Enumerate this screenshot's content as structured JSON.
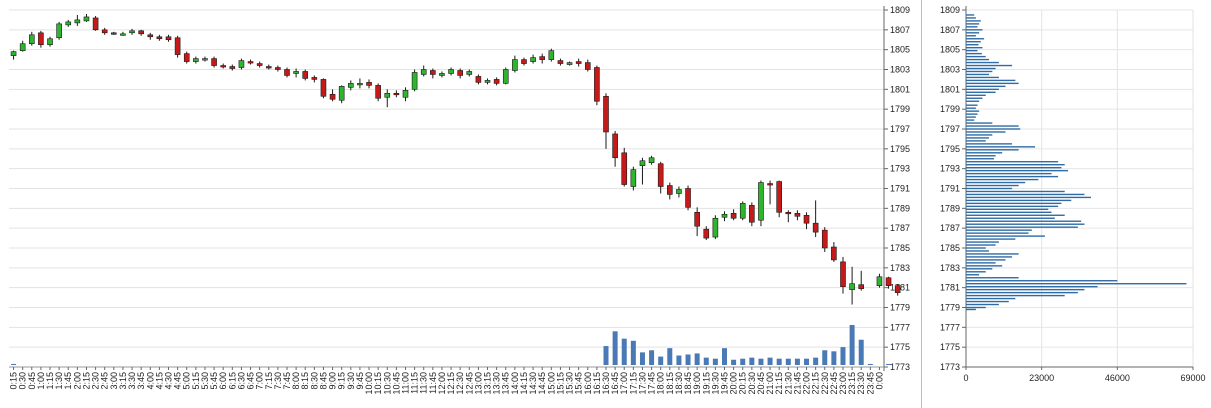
{
  "chart_data": [
    {
      "type": "candlestick",
      "price_axis": {
        "min": 1773,
        "max": 1809,
        "ticks": [
          1773,
          1775,
          1777,
          1779,
          1781,
          1783,
          1785,
          1787,
          1789,
          1791,
          1793,
          1795,
          1797,
          1799,
          1801,
          1803,
          1805,
          1807,
          1809
        ]
      },
      "x_tick_labels": [
        "0:15",
        "0:30",
        "0:45",
        "1:00",
        "1:15",
        "1:30",
        "1:45",
        "2:00",
        "2:15",
        "2:30",
        "2:45",
        "3:00",
        "3:15",
        "3:30",
        "3:45",
        "4:00",
        "4:15",
        "4:30",
        "4:45",
        "5:00",
        "5:15",
        "5:30",
        "5:45",
        "6:00",
        "6:15",
        "6:30",
        "6:45",
        "7:00",
        "7:15",
        "7:30",
        "7:45",
        "8:00",
        "8:15",
        "8:30",
        "8:45",
        "9:00",
        "9:15",
        "9:30",
        "9:45",
        "10:00",
        "10:15",
        "10:30",
        "10:45",
        "11:00",
        "11:15",
        "11:30",
        "11:45",
        "12:00",
        "12:15",
        "12:30",
        "12:45",
        "13:00",
        "13:15",
        "13:30",
        "13:45",
        "14:00",
        "14:15",
        "14:30",
        "14:45",
        "15:00",
        "15:15",
        "15:30",
        "15:45",
        "16:00",
        "16:15",
        "16:30",
        "16:45",
        "17:00",
        "17:15",
        "17:30",
        "17:45",
        "18:00",
        "18:15",
        "18:30",
        "18:45",
        "19:00",
        "19:15",
        "19:30",
        "19:45",
        "20:00",
        "20:15",
        "20:30",
        "20:45",
        "21:00",
        "21:15",
        "21:30",
        "21:45",
        "22:00",
        "22:15",
        "22:30",
        "22:45",
        "23:00",
        "23:15",
        "23:30",
        "23:45",
        "0:00"
      ],
      "candles": [
        [
          1804.4,
          1804.8,
          1804.0,
          1804.9
        ],
        [
          1804.9,
          1805.6,
          1804.8,
          1805.9
        ],
        [
          1805.6,
          1806.5,
          1805.4,
          1806.8
        ],
        [
          1806.7,
          1805.5,
          1805.2,
          1806.9
        ],
        [
          1805.5,
          1806.1,
          1805.3,
          1806.3
        ],
        [
          1806.2,
          1807.6,
          1806.0,
          1807.8
        ],
        [
          1807.5,
          1807.8,
          1807.3,
          1808.0
        ],
        [
          1807.7,
          1808.0,
          1807.4,
          1808.5
        ],
        [
          1807.9,
          1808.3,
          1807.8,
          1808.6
        ],
        [
          1808.2,
          1807.0,
          1806.9,
          1808.4
        ],
        [
          1807.0,
          1806.7,
          1806.5,
          1807.2
        ],
        [
          1806.7,
          1806.6,
          1806.5,
          1806.8
        ],
        [
          1806.6,
          1806.6,
          1806.4,
          1806.8
        ],
        [
          1806.7,
          1806.9,
          1806.5,
          1807.1
        ],
        [
          1806.9,
          1806.6,
          1806.4,
          1807.0
        ],
        [
          1806.5,
          1806.3,
          1806.0,
          1806.7
        ],
        [
          1806.3,
          1806.1,
          1805.9,
          1806.5
        ],
        [
          1806.3,
          1806.0,
          1805.8,
          1806.5
        ],
        [
          1806.2,
          1804.5,
          1804.2,
          1806.4
        ],
        [
          1804.6,
          1803.8,
          1803.6,
          1804.8
        ],
        [
          1803.8,
          1804.1,
          1803.6,
          1804.3
        ],
        [
          1804.0,
          1804.1,
          1803.8,
          1804.3
        ],
        [
          1804.1,
          1803.4,
          1803.2,
          1804.3
        ],
        [
          1803.4,
          1803.3,
          1803.1,
          1803.6
        ],
        [
          1803.3,
          1803.1,
          1802.9,
          1803.5
        ],
        [
          1803.2,
          1803.9,
          1803.0,
          1804.1
        ],
        [
          1803.8,
          1803.7,
          1803.5,
          1804.0
        ],
        [
          1803.6,
          1803.4,
          1803.2,
          1803.8
        ],
        [
          1803.3,
          1803.2,
          1803.0,
          1803.5
        ],
        [
          1803.2,
          1803.0,
          1802.8,
          1803.4
        ],
        [
          1803.0,
          1802.4,
          1802.2,
          1803.2
        ],
        [
          1802.6,
          1802.8,
          1802.2,
          1803.1
        ],
        [
          1802.8,
          1802.1,
          1801.9,
          1803.0
        ],
        [
          1802.2,
          1802.0,
          1801.7,
          1802.4
        ],
        [
          1802.0,
          1800.3,
          1800.1,
          1802.1
        ],
        [
          1800.5,
          1800.0,
          1799.8,
          1801.0
        ],
        [
          1799.9,
          1801.3,
          1799.6,
          1801.4
        ],
        [
          1801.2,
          1801.6,
          1800.9,
          1801.9
        ],
        [
          1801.5,
          1801.6,
          1801.1,
          1802.1
        ],
        [
          1801.7,
          1801.4,
          1801.1,
          1802.0
        ],
        [
          1801.4,
          1800.1,
          1799.8,
          1801.6
        ],
        [
          1800.2,
          1800.6,
          1799.2,
          1801.0
        ],
        [
          1800.6,
          1800.5,
          1800.2,
          1800.9
        ],
        [
          1800.2,
          1800.9,
          1799.8,
          1801.2
        ],
        [
          1801.0,
          1802.7,
          1800.8,
          1803.0
        ],
        [
          1802.5,
          1803.0,
          1802.3,
          1803.4
        ],
        [
          1802.9,
          1802.5,
          1802.1,
          1803.1
        ],
        [
          1802.4,
          1802.6,
          1802.2,
          1802.8
        ],
        [
          1802.6,
          1803.0,
          1802.4,
          1803.2
        ],
        [
          1802.9,
          1802.4,
          1802.1,
          1803.1
        ],
        [
          1802.5,
          1802.8,
          1802.3,
          1803.0
        ],
        [
          1802.3,
          1801.7,
          1801.5,
          1802.5
        ],
        [
          1801.7,
          1801.9,
          1801.5,
          1802.1
        ],
        [
          1802.0,
          1801.6,
          1801.4,
          1802.2
        ],
        [
          1801.6,
          1803.0,
          1801.5,
          1803.2
        ],
        [
          1802.9,
          1804.0,
          1802.7,
          1804.4
        ],
        [
          1804.0,
          1803.6,
          1803.4,
          1804.2
        ],
        [
          1803.8,
          1804.2,
          1803.6,
          1804.5
        ],
        [
          1804.3,
          1804.0,
          1803.6,
          1804.6
        ],
        [
          1804.0,
          1804.9,
          1803.8,
          1805.1
        ],
        [
          1803.9,
          1803.6,
          1803.4,
          1804.1
        ],
        [
          1803.5,
          1803.7,
          1803.4,
          1803.8
        ],
        [
          1803.8,
          1803.6,
          1803.3,
          1804.1
        ],
        [
          1803.7,
          1803.0,
          1802.8,
          1804.0
        ],
        [
          1803.2,
          1799.8,
          1799.4,
          1803.4
        ],
        [
          1800.3,
          1796.7,
          1795.0,
          1800.6
        ],
        [
          1796.5,
          1794.1,
          1793.2,
          1796.8
        ],
        [
          1794.6,
          1791.4,
          1791.2,
          1795.1
        ],
        [
          1791.2,
          1792.9,
          1790.8,
          1793.2
        ],
        [
          1793.3,
          1793.8,
          1791.4,
          1794.1
        ],
        [
          1793.6,
          1794.1,
          1793.4,
          1794.3
        ],
        [
          1793.5,
          1791.2,
          1790.5,
          1793.7
        ],
        [
          1791.3,
          1790.4,
          1789.9,
          1791.6
        ],
        [
          1790.5,
          1790.9,
          1790.1,
          1791.2
        ],
        [
          1791.0,
          1789.1,
          1788.8,
          1791.3
        ],
        [
          1788.6,
          1787.2,
          1786.2,
          1789.1
        ],
        [
          1786.9,
          1786.0,
          1785.8,
          1787.2
        ],
        [
          1786.1,
          1788.0,
          1785.9,
          1788.3
        ],
        [
          1788.1,
          1788.4,
          1787.7,
          1788.7
        ],
        [
          1788.5,
          1788.0,
          1787.8,
          1788.9
        ],
        [
          1788.0,
          1789.5,
          1787.8,
          1789.7
        ],
        [
          1789.3,
          1787.6,
          1787.2,
          1789.6
        ],
        [
          1787.8,
          1791.6,
          1787.2,
          1791.8
        ],
        [
          1791.5,
          1791.4,
          1789.4,
          1791.8
        ],
        [
          1791.7,
          1788.6,
          1788.1,
          1791.8
        ],
        [
          1788.6,
          1788.5,
          1787.6,
          1788.8
        ],
        [
          1788.5,
          1788.2,
          1787.8,
          1788.8
        ],
        [
          1788.3,
          1787.5,
          1786.9,
          1788.6
        ],
        [
          1787.5,
          1786.6,
          1786.1,
          1789.8
        ],
        [
          1786.8,
          1785.0,
          1784.6,
          1787.1
        ],
        [
          1785.1,
          1783.8,
          1783.6,
          1785.6
        ],
        [
          1783.6,
          1781.1,
          1780.4,
          1784.1
        ],
        [
          1780.8,
          1781.4,
          1779.3,
          1783.1
        ],
        [
          1781.3,
          1780.9,
          1780.7,
          1782.7
        ],
        null,
        [
          1781.2,
          1782.1,
          1781.0,
          1782.4
        ],
        [
          1782.0,
          1781.2,
          1780.9,
          1782.1
        ],
        [
          1781.2,
          1780.5,
          1780.2,
          1781.3
        ]
      ],
      "volume_bars": [
        1,
        0,
        0,
        0,
        0,
        0,
        0,
        0,
        0,
        0,
        0,
        0,
        0,
        0,
        0,
        0,
        0,
        0,
        0,
        0,
        0,
        0,
        0,
        0,
        0,
        0,
        0,
        0,
        0,
        0,
        0,
        0,
        0,
        0,
        0,
        0,
        0,
        0,
        0,
        0,
        0,
        0,
        0,
        0,
        0,
        0,
        0,
        0,
        0,
        0,
        0,
        0,
        0,
        0,
        0,
        0,
        0,
        0,
        0,
        0,
        0,
        0,
        0,
        0,
        0,
        18,
        32,
        25,
        23,
        12,
        14,
        8,
        16,
        9,
        10,
        11,
        7,
        6,
        16,
        5,
        6,
        7,
        6,
        7,
        6,
        6,
        6,
        6,
        7,
        14,
        13,
        17,
        38,
        24,
        1,
        0,
        1,
        0
      ],
      "colors": {
        "up": "#2db52d",
        "down": "#c51a1a",
        "outline": "#1a1a1a",
        "volume": "#4a7ab5",
        "grid": "#e3e3e3"
      }
    },
    {
      "type": "horizontal-bar",
      "title": "",
      "x_ticks": [
        0,
        23000,
        46000,
        69000
      ],
      "x_tick_labels": [
        "0",
        "23000",
        "46000",
        "69000"
      ],
      "xlim": [
        0,
        69000
      ],
      "y_axis": {
        "min": 1773,
        "max": 1809,
        "ticks": [
          1773,
          1775,
          1777,
          1779,
          1781,
          1783,
          1785,
          1787,
          1789,
          1791,
          1793,
          1795,
          1797,
          1799,
          1801,
          1803,
          1805,
          1807,
          1809
        ]
      },
      "profile": [
        [
          1808.5,
          2500
        ],
        [
          1808.2,
          3000
        ],
        [
          1807.9,
          4500
        ],
        [
          1807.6,
          4000
        ],
        [
          1807.3,
          3500
        ],
        [
          1807.0,
          5000
        ],
        [
          1806.7,
          4000
        ],
        [
          1806.4,
          3000
        ],
        [
          1806.1,
          5500
        ],
        [
          1805.8,
          4500
        ],
        [
          1805.5,
          3800
        ],
        [
          1805.2,
          5000
        ],
        [
          1804.9,
          3500
        ],
        [
          1804.6,
          4800
        ],
        [
          1804.3,
          6000
        ],
        [
          1804.0,
          7000
        ],
        [
          1803.7,
          10000
        ],
        [
          1803.4,
          14000
        ],
        [
          1803.1,
          9000
        ],
        [
          1802.8,
          8000
        ],
        [
          1802.5,
          7000
        ],
        [
          1802.2,
          10000
        ],
        [
          1801.9,
          15000
        ],
        [
          1801.6,
          16000
        ],
        [
          1801.3,
          12000
        ],
        [
          1801.0,
          10000
        ],
        [
          1800.7,
          9000
        ],
        [
          1800.4,
          6000
        ],
        [
          1800.1,
          5000
        ],
        [
          1799.8,
          4000
        ],
        [
          1799.4,
          3500
        ],
        [
          1799.1,
          3000
        ],
        [
          1798.8,
          4000
        ],
        [
          1798.5,
          3500
        ],
        [
          1798.2,
          3000
        ],
        [
          1797.9,
          2500
        ],
        [
          1797.6,
          8000
        ],
        [
          1797.3,
          16000
        ],
        [
          1797.0,
          16500
        ],
        [
          1796.7,
          12000
        ],
        [
          1796.4,
          8000
        ],
        [
          1796.1,
          7000
        ],
        [
          1795.8,
          6000
        ],
        [
          1795.5,
          14000
        ],
        [
          1795.2,
          21000
        ],
        [
          1794.9,
          16000
        ],
        [
          1794.6,
          11000
        ],
        [
          1794.3,
          9000
        ],
        [
          1794.0,
          8500
        ],
        [
          1793.7,
          28000
        ],
        [
          1793.4,
          30000
        ],
        [
          1793.1,
          29000
        ],
        [
          1792.8,
          31000
        ],
        [
          1792.5,
          26000
        ],
        [
          1792.2,
          28000
        ],
        [
          1791.9,
          22000
        ],
        [
          1791.6,
          18000
        ],
        [
          1791.3,
          16000
        ],
        [
          1791.0,
          14000
        ],
        [
          1790.7,
          30000
        ],
        [
          1790.4,
          36000
        ],
        [
          1790.1,
          38000
        ],
        [
          1789.8,
          32000
        ],
        [
          1789.5,
          29000
        ],
        [
          1789.2,
          28000
        ],
        [
          1788.9,
          25000
        ],
        [
          1788.6,
          26000
        ],
        [
          1788.3,
          30000
        ],
        [
          1788.0,
          27000
        ],
        [
          1787.7,
          35000
        ],
        [
          1787.4,
          36000
        ],
        [
          1787.1,
          34000
        ],
        [
          1786.8,
          20000
        ],
        [
          1786.5,
          19000
        ],
        [
          1786.2,
          24000
        ],
        [
          1785.9,
          15000
        ],
        [
          1785.6,
          10000
        ],
        [
          1785.3,
          9000
        ],
        [
          1785.0,
          6000
        ],
        [
          1784.7,
          7000
        ],
        [
          1784.4,
          16000
        ],
        [
          1784.1,
          14000
        ],
        [
          1783.8,
          12000
        ],
        [
          1783.5,
          9000
        ],
        [
          1783.2,
          11000
        ],
        [
          1782.9,
          8000
        ],
        [
          1782.6,
          6000
        ],
        [
          1782.3,
          4000
        ],
        [
          1782.0,
          16000
        ],
        [
          1781.7,
          46000
        ],
        [
          1781.4,
          67000
        ],
        [
          1781.1,
          40000
        ],
        [
          1780.8,
          36000
        ],
        [
          1780.5,
          34000
        ],
        [
          1780.2,
          30000
        ],
        [
          1779.9,
          15000
        ],
        [
          1779.6,
          13000
        ],
        [
          1779.3,
          10000
        ],
        [
          1779.0,
          6000
        ],
        [
          1778.8,
          3000
        ]
      ],
      "bar_color": "#2f6ca6"
    }
  ]
}
